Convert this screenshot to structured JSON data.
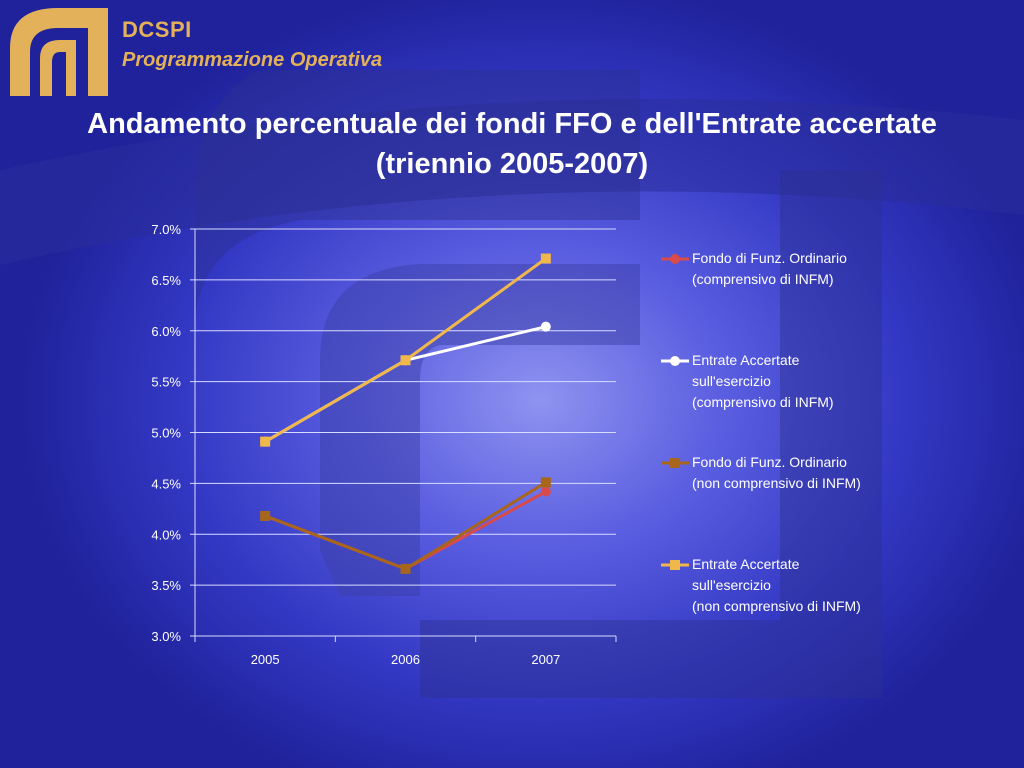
{
  "header": {
    "brand": "DCSPI",
    "subtitle": "Programmazione Operativa",
    "title_line1": "Andamento percentuale dei fondi FFO e dell'Entrate accertate",
    "title_line2": "(triennio 2005-2007)"
  },
  "colors": {
    "gold": "#e3b15a",
    "series_red": "#d94a4a",
    "series_white": "#ffffff",
    "series_brown": "#a8661c",
    "series_yellow": "#f0b84a"
  },
  "chart_data": {
    "type": "line",
    "categories": [
      "2005",
      "2006",
      "2007"
    ],
    "ylim": [
      0.03,
      0.07
    ],
    "yticks": [
      "3.0%",
      "3.5%",
      "4.0%",
      "4.5%",
      "5.0%",
      "5.5%",
      "6.0%",
      "6.5%",
      "7.0%"
    ],
    "grid": true,
    "legend_position": "right",
    "series": [
      {
        "name": "Fondo di Funz. Ordinario\n(comprensivo di INFM)",
        "values": [
          0.0418,
          0.0366,
          0.0442
        ],
        "color": "#d94a4a",
        "marker": "circle"
      },
      {
        "name": "Entrate Accertate\nsull'esercizio\n(comprensivo di INFM)",
        "values": [
          0.0491,
          0.0571,
          0.0604
        ],
        "color": "#ffffff",
        "marker": "circle"
      },
      {
        "name": "Fondo di Funz. Ordinario\n(non comprensivo di INFM)",
        "values": [
          0.0418,
          0.0366,
          0.0451
        ],
        "color": "#a8661c",
        "marker": "square"
      },
      {
        "name": "Entrate Accertate\nsull'esercizio\n(non comprensivo di INFM)",
        "values": [
          0.0491,
          0.0571,
          0.0671
        ],
        "color": "#f0b84a",
        "marker": "square"
      }
    ]
  }
}
